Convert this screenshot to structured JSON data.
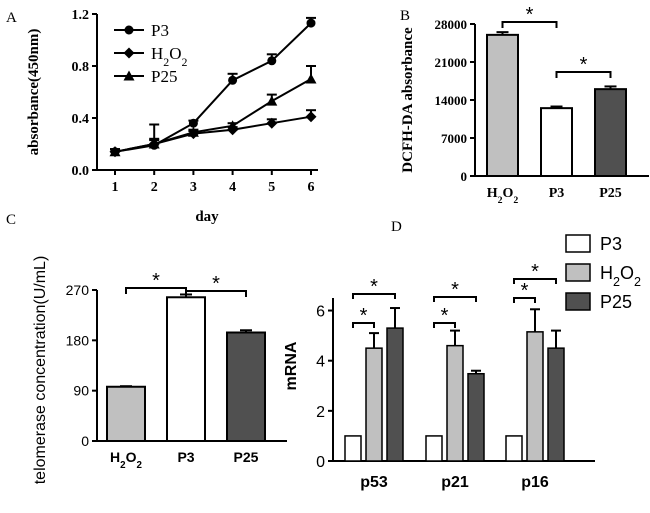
{
  "chart_data": [
    {
      "panel": "A",
      "type": "line",
      "xlabel": "day",
      "ylabel": "absorbance(450nm)",
      "x": [
        1,
        2,
        3,
        4,
        5,
        6
      ],
      "xlim": [
        0.5,
        6.5
      ],
      "ylim": [
        0,
        1.2
      ],
      "yticks": [
        "0.0",
        "0.4",
        "0.8",
        "1.2"
      ],
      "series": [
        {
          "name": "P3",
          "marker": "circle",
          "values": [
            0.14,
            0.19,
            0.36,
            0.69,
            0.84,
            1.13
          ],
          "errors": [
            0.02,
            0.04,
            0.02,
            0.05,
            0.05,
            0.04
          ]
        },
        {
          "name": "H2O2",
          "name_base": "H",
          "name_sub1": "2",
          "name_mid": "O",
          "name_sub2": "2",
          "marker": "diamond",
          "values": [
            0.14,
            0.2,
            0.28,
            0.31,
            0.36,
            0.41
          ],
          "errors": [
            0.02,
            0.15,
            0.02,
            0.02,
            0.03,
            0.05
          ]
        },
        {
          "name": "P25",
          "marker": "triangle",
          "values": [
            0.14,
            0.2,
            0.29,
            0.34,
            0.53,
            0.7
          ],
          "errors": [
            0.02,
            0.04,
            0.02,
            0.02,
            0.05,
            0.1
          ]
        }
      ],
      "legend": "top-left"
    },
    {
      "panel": "B",
      "type": "bar",
      "ylabel": "DCFH-DA absorbance",
      "categories": [
        "H2O2",
        "P3",
        "P25"
      ],
      "values": [
        26000,
        12500,
        16000
      ],
      "errors": [
        500,
        300,
        500
      ],
      "fills": [
        "#c0c0c0",
        "#ffffff",
        "#505050"
      ],
      "ylim": [
        0,
        28000
      ],
      "yticks": [
        "0",
        "7000",
        "14000",
        "21000",
        "28000"
      ],
      "significance": [
        "*",
        "*"
      ]
    },
    {
      "panel": "C",
      "type": "bar",
      "ylabel": "telomerase concentration(U/mL)",
      "categories": [
        "H2O2",
        "P3",
        "P25"
      ],
      "values": [
        97,
        257,
        194
      ],
      "errors": [
        1,
        5,
        4
      ],
      "fills": [
        "#c0c0c0",
        "#ffffff",
        "#505050"
      ],
      "ylim": [
        0,
        270
      ],
      "yticks": [
        "0",
        "90",
        "180",
        "270"
      ],
      "significance": [
        "*",
        "*"
      ]
    },
    {
      "panel": "D",
      "type": "bar",
      "ylabel": "mRNA",
      "categories": [
        "p53",
        "p21",
        "p16"
      ],
      "ylim": [
        0,
        6.5
      ],
      "yticks": [
        "0",
        "2",
        "4",
        "6"
      ],
      "series": [
        {
          "name": "P3",
          "color": "#ffffff",
          "values": [
            1.0,
            1.0,
            1.0
          ],
          "errors": [
            0,
            0,
            0
          ]
        },
        {
          "name": "H2O2",
          "color": "#c0c0c0",
          "values": [
            4.5,
            4.6,
            5.15
          ],
          "errors": [
            0.6,
            0.6,
            0.9
          ]
        },
        {
          "name": "P25",
          "color": "#505050",
          "values": [
            5.3,
            3.48,
            4.5
          ],
          "errors": [
            0.8,
            0.12,
            0.7
          ]
        }
      ],
      "significance": [
        "*",
        "*",
        "*",
        "*",
        "*",
        "*"
      ],
      "legend": "top-right"
    }
  ]
}
